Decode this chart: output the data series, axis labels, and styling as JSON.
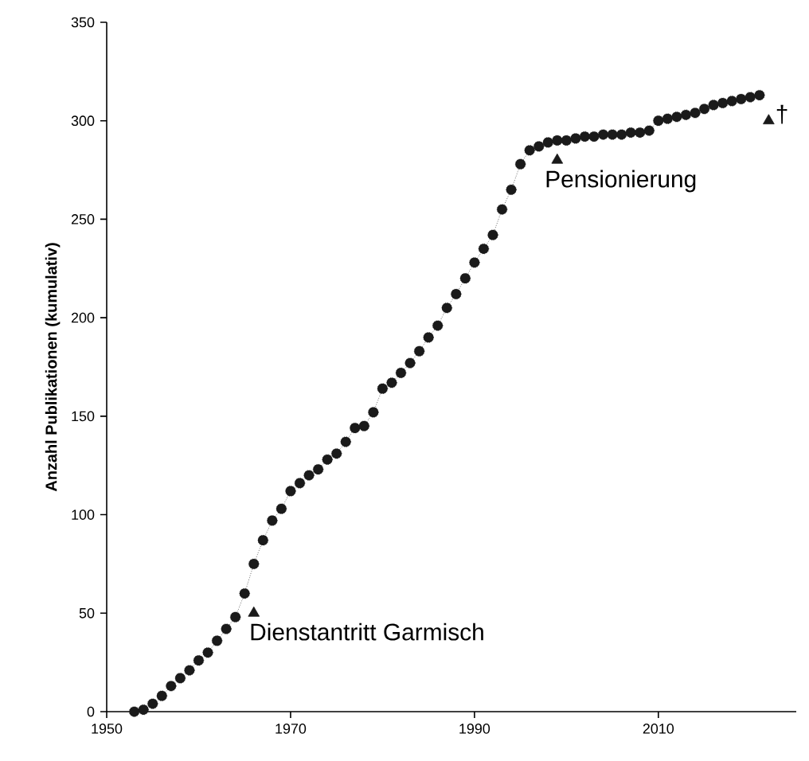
{
  "chart_data": {
    "type": "line",
    "ylabel": "Anzahl Publikationen (kumulativ)",
    "xlim": [
      1950,
      2025
    ],
    "ylim": [
      0,
      350
    ],
    "xticks": [
      1950,
      1970,
      1990,
      2010
    ],
    "yticks": [
      0,
      50,
      100,
      150,
      200,
      250,
      300,
      350
    ],
    "grid": false,
    "series": [
      {
        "marker": "circle",
        "line_style": "dotted",
        "color": "#1a1a1a",
        "x": [
          1953,
          1954,
          1955,
          1956,
          1957,
          1958,
          1959,
          1960,
          1961,
          1962,
          1963,
          1964,
          1965,
          1966,
          1967,
          1968,
          1969,
          1970,
          1971,
          1972,
          1973,
          1974,
          1975,
          1976,
          1977,
          1978,
          1979,
          1980,
          1981,
          1982,
          1983,
          1984,
          1985,
          1986,
          1987,
          1988,
          1989,
          1990,
          1991,
          1992,
          1993,
          1994,
          1995,
          1996,
          1997,
          1998,
          1999,
          2000,
          2001,
          2002,
          2003,
          2004,
          2005,
          2006,
          2007,
          2008,
          2009,
          2010,
          2011,
          2012,
          2013,
          2014,
          2015,
          2016,
          2017,
          2018,
          2019,
          2020,
          2021
        ],
        "values": [
          0,
          1,
          4,
          8,
          13,
          17,
          21,
          26,
          30,
          36,
          42,
          48,
          60,
          75,
          87,
          97,
          103,
          112,
          116,
          120,
          123,
          128,
          131,
          137,
          144,
          145,
          152,
          164,
          167,
          172,
          177,
          183,
          190,
          196,
          205,
          212,
          220,
          228,
          235,
          242,
          255,
          265,
          278,
          285,
          287,
          289,
          290,
          290,
          291,
          292,
          292,
          293,
          293,
          293,
          294,
          294,
          295,
          300,
          301,
          302,
          303,
          304,
          306,
          308,
          309,
          310,
          311,
          312,
          313
        ]
      },
      {
        "type": "scatter",
        "marker": "triangle",
        "color": "#1a1a1a",
        "x": [
          1966,
          1999,
          2022
        ],
        "values": [
          50,
          280,
          300
        ]
      }
    ],
    "annotations": [
      {
        "text": "Dienstantritt Garmisch",
        "x": 1966,
        "y": 50
      },
      {
        "text": "Pensionierung",
        "x": 1999,
        "y": 280
      },
      {
        "text": "†",
        "x": 2022,
        "y": 300
      }
    ]
  }
}
